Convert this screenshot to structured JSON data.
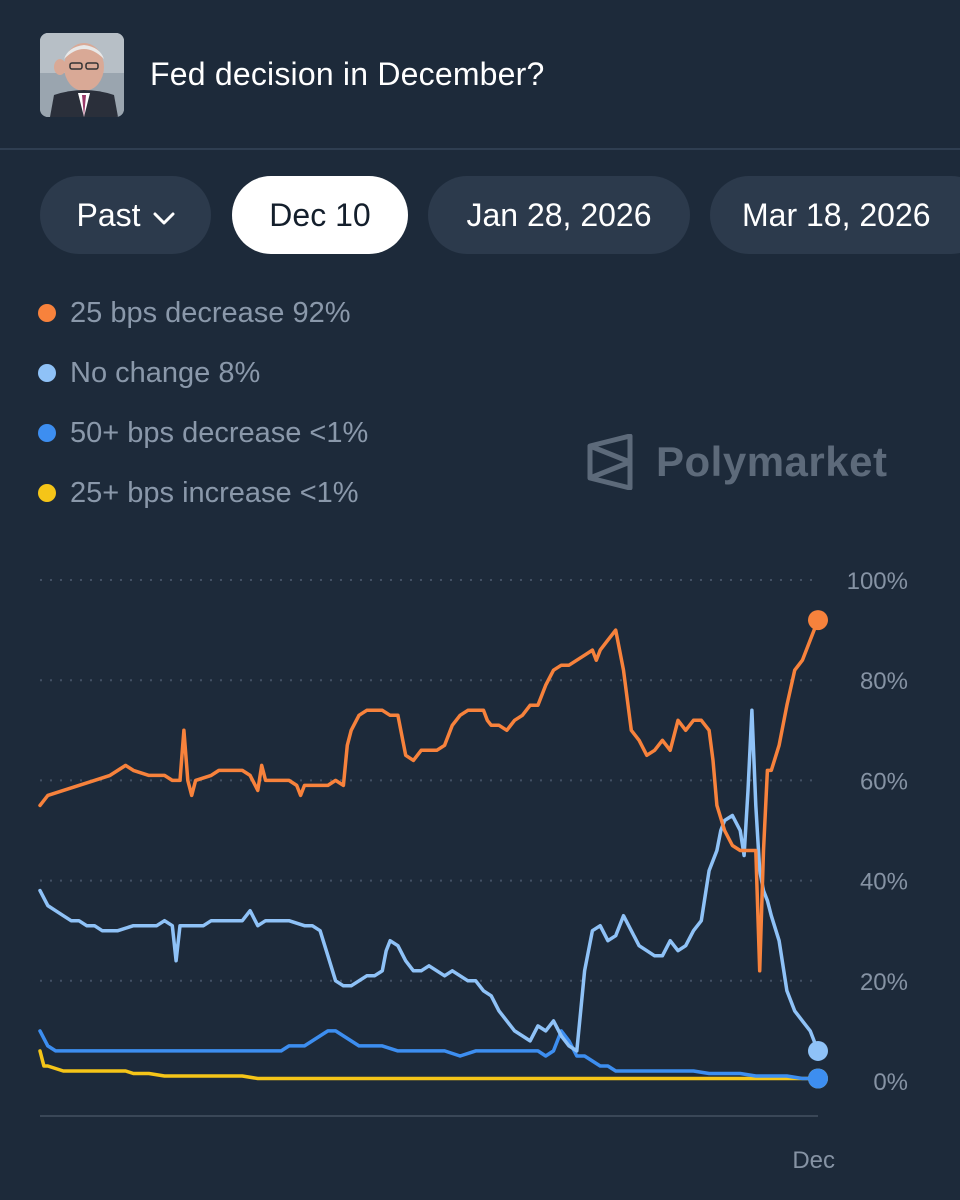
{
  "header": {
    "title": "Fed decision in December?"
  },
  "tabs": [
    {
      "label": "Past",
      "active": false,
      "dropdown": true
    },
    {
      "label": "Dec 10",
      "active": true
    },
    {
      "label": "Jan 28, 2026",
      "active": false
    },
    {
      "label": "Mar 18, 2026",
      "active": false
    }
  ],
  "legend": [
    {
      "label": "25 bps decrease 92%",
      "color": "#f7823c"
    },
    {
      "label": "No change 8%",
      "color": "#8fc2f7"
    },
    {
      "label": "50+ bps decrease <1%",
      "color": "#3d8ef0"
    },
    {
      "label": "25+ bps increase <1%",
      "color": "#f5c518"
    }
  ],
  "watermark": {
    "text": "Polymarket"
  },
  "chart_data": {
    "type": "line",
    "x_tick_labels": [
      "Dec"
    ],
    "y_tick_labels": [
      "100%",
      "80%",
      "60%",
      "40%",
      "20%",
      "0%"
    ],
    "ylim": [
      0,
      100
    ],
    "grid": true,
    "x_range": [
      0,
      100
    ],
    "series": [
      {
        "name": "25 bps decrease",
        "color": "#f7823c",
        "points": [
          [
            0,
            55
          ],
          [
            1,
            57
          ],
          [
            3,
            58
          ],
          [
            5,
            59
          ],
          [
            7,
            60
          ],
          [
            9,
            61
          ],
          [
            10,
            62
          ],
          [
            11,
            63
          ],
          [
            12,
            62
          ],
          [
            14,
            61
          ],
          [
            16,
            61
          ],
          [
            17,
            60
          ],
          [
            18,
            60
          ],
          [
            18.5,
            70
          ],
          [
            19,
            60
          ],
          [
            19.5,
            57
          ],
          [
            20,
            60
          ],
          [
            22,
            61
          ],
          [
            23,
            62
          ],
          [
            24,
            62
          ],
          [
            26,
            62
          ],
          [
            27,
            61
          ],
          [
            28,
            58
          ],
          [
            28.5,
            63
          ],
          [
            29,
            60
          ],
          [
            31,
            60
          ],
          [
            32,
            60
          ],
          [
            33,
            59
          ],
          [
            33.5,
            57
          ],
          [
            34,
            59
          ],
          [
            35,
            59
          ],
          [
            36,
            59
          ],
          [
            37,
            59
          ],
          [
            38,
            60
          ],
          [
            39,
            59
          ],
          [
            39.5,
            67
          ],
          [
            40,
            70
          ],
          [
            41,
            73
          ],
          [
            42,
            74
          ],
          [
            43,
            74
          ],
          [
            44,
            74
          ],
          [
            45,
            73
          ],
          [
            46,
            73
          ],
          [
            47,
            65
          ],
          [
            48,
            64
          ],
          [
            49,
            66
          ],
          [
            50,
            66
          ],
          [
            51,
            66
          ],
          [
            52,
            67
          ],
          [
            53,
            71
          ],
          [
            54,
            73
          ],
          [
            55,
            74
          ],
          [
            56,
            74
          ],
          [
            57,
            74
          ],
          [
            57.5,
            72
          ],
          [
            58,
            71
          ],
          [
            59,
            71
          ],
          [
            60,
            70
          ],
          [
            61,
            72
          ],
          [
            62,
            73
          ],
          [
            63,
            75
          ],
          [
            64,
            75
          ],
          [
            65,
            79
          ],
          [
            66,
            82
          ],
          [
            67,
            83
          ],
          [
            68,
            83
          ],
          [
            69,
            84
          ],
          [
            70,
            85
          ],
          [
            71,
            86
          ],
          [
            71.5,
            84
          ],
          [
            72,
            86
          ],
          [
            73,
            88
          ],
          [
            74,
            90
          ],
          [
            75,
            82
          ],
          [
            76,
            70
          ],
          [
            77,
            68
          ],
          [
            78,
            65
          ],
          [
            79,
            66
          ],
          [
            80,
            68
          ],
          [
            81,
            66
          ],
          [
            82,
            72
          ],
          [
            83,
            70
          ],
          [
            84,
            72
          ],
          [
            85,
            72
          ],
          [
            86,
            70
          ],
          [
            86.5,
            64
          ],
          [
            87,
            55
          ],
          [
            88,
            50
          ],
          [
            89,
            47
          ],
          [
            90,
            46
          ],
          [
            91,
            46
          ],
          [
            92,
            46
          ],
          [
            92.5,
            22
          ],
          [
            93,
            46
          ],
          [
            93.5,
            62
          ],
          [
            94,
            62
          ],
          [
            95,
            67
          ],
          [
            96,
            75
          ],
          [
            97,
            82
          ],
          [
            98,
            84
          ],
          [
            99,
            88
          ],
          [
            100,
            92
          ]
        ]
      },
      {
        "name": "No change",
        "color": "#8fc2f7",
        "points": [
          [
            0,
            38
          ],
          [
            1,
            35
          ],
          [
            2,
            34
          ],
          [
            3,
            33
          ],
          [
            4,
            32
          ],
          [
            5,
            32
          ],
          [
            6,
            31
          ],
          [
            7,
            31
          ],
          [
            8,
            30
          ],
          [
            9,
            30
          ],
          [
            10,
            30
          ],
          [
            12,
            31
          ],
          [
            13,
            31
          ],
          [
            14,
            31
          ],
          [
            15,
            31
          ],
          [
            16,
            32
          ],
          [
            17,
            31
          ],
          [
            17.5,
            24
          ],
          [
            18,
            31
          ],
          [
            19,
            31
          ],
          [
            20,
            31
          ],
          [
            21,
            31
          ],
          [
            22,
            32
          ],
          [
            23,
            32
          ],
          [
            25,
            32
          ],
          [
            26,
            32
          ],
          [
            27,
            34
          ],
          [
            28,
            31
          ],
          [
            29,
            32
          ],
          [
            30,
            32
          ],
          [
            32,
            32
          ],
          [
            34,
            31
          ],
          [
            35,
            31
          ],
          [
            36,
            30
          ],
          [
            37,
            25
          ],
          [
            38,
            20
          ],
          [
            39,
            19
          ],
          [
            40,
            19
          ],
          [
            41,
            20
          ],
          [
            42,
            21
          ],
          [
            43,
            21
          ],
          [
            44,
            22
          ],
          [
            44.5,
            26
          ],
          [
            45,
            28
          ],
          [
            46,
            27
          ],
          [
            47,
            24
          ],
          [
            48,
            22
          ],
          [
            49,
            22
          ],
          [
            50,
            23
          ],
          [
            51,
            22
          ],
          [
            52,
            21
          ],
          [
            53,
            22
          ],
          [
            54,
            21
          ],
          [
            55,
            20
          ],
          [
            56,
            20
          ],
          [
            57,
            18
          ],
          [
            58,
            17
          ],
          [
            59,
            14
          ],
          [
            60,
            12
          ],
          [
            61,
            10
          ],
          [
            62,
            9
          ],
          [
            63,
            8
          ],
          [
            64,
            11
          ],
          [
            65,
            10
          ],
          [
            66,
            12
          ],
          [
            67,
            9
          ],
          [
            68,
            7
          ],
          [
            69,
            6
          ],
          [
            69.5,
            14
          ],
          [
            70,
            22
          ],
          [
            71,
            30
          ],
          [
            72,
            31
          ],
          [
            73,
            28
          ],
          [
            74,
            29
          ],
          [
            75,
            33
          ],
          [
            76,
            30
          ],
          [
            77,
            27
          ],
          [
            78,
            26
          ],
          [
            79,
            25
          ],
          [
            80,
            25
          ],
          [
            81,
            28
          ],
          [
            82,
            26
          ],
          [
            83,
            27
          ],
          [
            84,
            30
          ],
          [
            85,
            32
          ],
          [
            86,
            42
          ],
          [
            87,
            46
          ],
          [
            87.5,
            50
          ],
          [
            88,
            52
          ],
          [
            89,
            53
          ],
          [
            90,
            50
          ],
          [
            90.5,
            45
          ],
          [
            91,
            58
          ],
          [
            91.5,
            74
          ],
          [
            92,
            55
          ],
          [
            92.5,
            42
          ],
          [
            93,
            38
          ],
          [
            93.5,
            36
          ],
          [
            94,
            33
          ],
          [
            95,
            28
          ],
          [
            96,
            18
          ],
          [
            97,
            14
          ],
          [
            98,
            12
          ],
          [
            99,
            10
          ],
          [
            100,
            6
          ]
        ]
      },
      {
        "name": "50+ bps decrease",
        "color": "#3d8ef0",
        "points": [
          [
            0,
            10
          ],
          [
            1,
            7
          ],
          [
            2,
            6
          ],
          [
            4,
            6
          ],
          [
            6,
            6
          ],
          [
            8,
            6
          ],
          [
            9,
            6
          ],
          [
            10,
            6
          ],
          [
            11,
            6
          ],
          [
            12,
            6
          ],
          [
            14,
            6
          ],
          [
            16,
            6
          ],
          [
            18,
            6
          ],
          [
            20,
            6
          ],
          [
            22,
            6
          ],
          [
            24,
            6
          ],
          [
            26,
            6
          ],
          [
            28,
            6
          ],
          [
            29,
            6
          ],
          [
            30,
            6
          ],
          [
            31,
            6
          ],
          [
            32,
            7
          ],
          [
            33,
            7
          ],
          [
            34,
            7
          ],
          [
            35,
            8
          ],
          [
            36,
            9
          ],
          [
            37,
            10
          ],
          [
            38,
            10
          ],
          [
            39,
            9
          ],
          [
            40,
            8
          ],
          [
            41,
            7
          ],
          [
            42,
            7
          ],
          [
            44,
            7
          ],
          [
            46,
            6
          ],
          [
            48,
            6
          ],
          [
            50,
            6
          ],
          [
            52,
            6
          ],
          [
            54,
            5
          ],
          [
            56,
            6
          ],
          [
            58,
            6
          ],
          [
            60,
            6
          ],
          [
            62,
            6
          ],
          [
            64,
            6
          ],
          [
            65,
            5
          ],
          [
            66,
            6
          ],
          [
            67,
            10
          ],
          [
            68,
            8
          ],
          [
            69,
            5
          ],
          [
            70,
            5
          ],
          [
            71,
            4
          ],
          [
            72,
            3
          ],
          [
            73,
            3
          ],
          [
            74,
            2
          ],
          [
            76,
            2
          ],
          [
            78,
            2
          ],
          [
            80,
            2
          ],
          [
            82,
            2
          ],
          [
            84,
            2
          ],
          [
            86,
            1.5
          ],
          [
            88,
            1.5
          ],
          [
            90,
            1.5
          ],
          [
            92,
            1
          ],
          [
            94,
            1
          ],
          [
            96,
            1
          ],
          [
            98,
            0.5
          ],
          [
            100,
            0.5
          ]
        ]
      },
      {
        "name": "25+ bps increase",
        "color": "#f5c518",
        "points": [
          [
            0,
            6
          ],
          [
            0.5,
            3
          ],
          [
            1,
            3
          ],
          [
            3,
            2
          ],
          [
            5,
            2
          ],
          [
            7,
            2
          ],
          [
            9,
            2
          ],
          [
            11,
            2
          ],
          [
            12,
            1.5
          ],
          [
            14,
            1.5
          ],
          [
            16,
            1
          ],
          [
            18,
            1
          ],
          [
            20,
            1
          ],
          [
            22,
            1
          ],
          [
            24,
            1
          ],
          [
            26,
            1
          ],
          [
            28,
            0.5
          ],
          [
            30,
            0.5
          ],
          [
            34,
            0.5
          ],
          [
            38,
            0.5
          ],
          [
            42,
            0.5
          ],
          [
            46,
            0.5
          ],
          [
            50,
            0.5
          ],
          [
            54,
            0.5
          ],
          [
            58,
            0.5
          ],
          [
            62,
            0.5
          ],
          [
            66,
            0.5
          ],
          [
            70,
            0.5
          ],
          [
            74,
            0.5
          ],
          [
            78,
            0.5
          ],
          [
            82,
            0.5
          ],
          [
            86,
            0.5
          ],
          [
            90,
            0.5
          ],
          [
            94,
            0.5
          ],
          [
            98,
            0.5
          ],
          [
            100,
            0.5
          ]
        ]
      }
    ]
  }
}
